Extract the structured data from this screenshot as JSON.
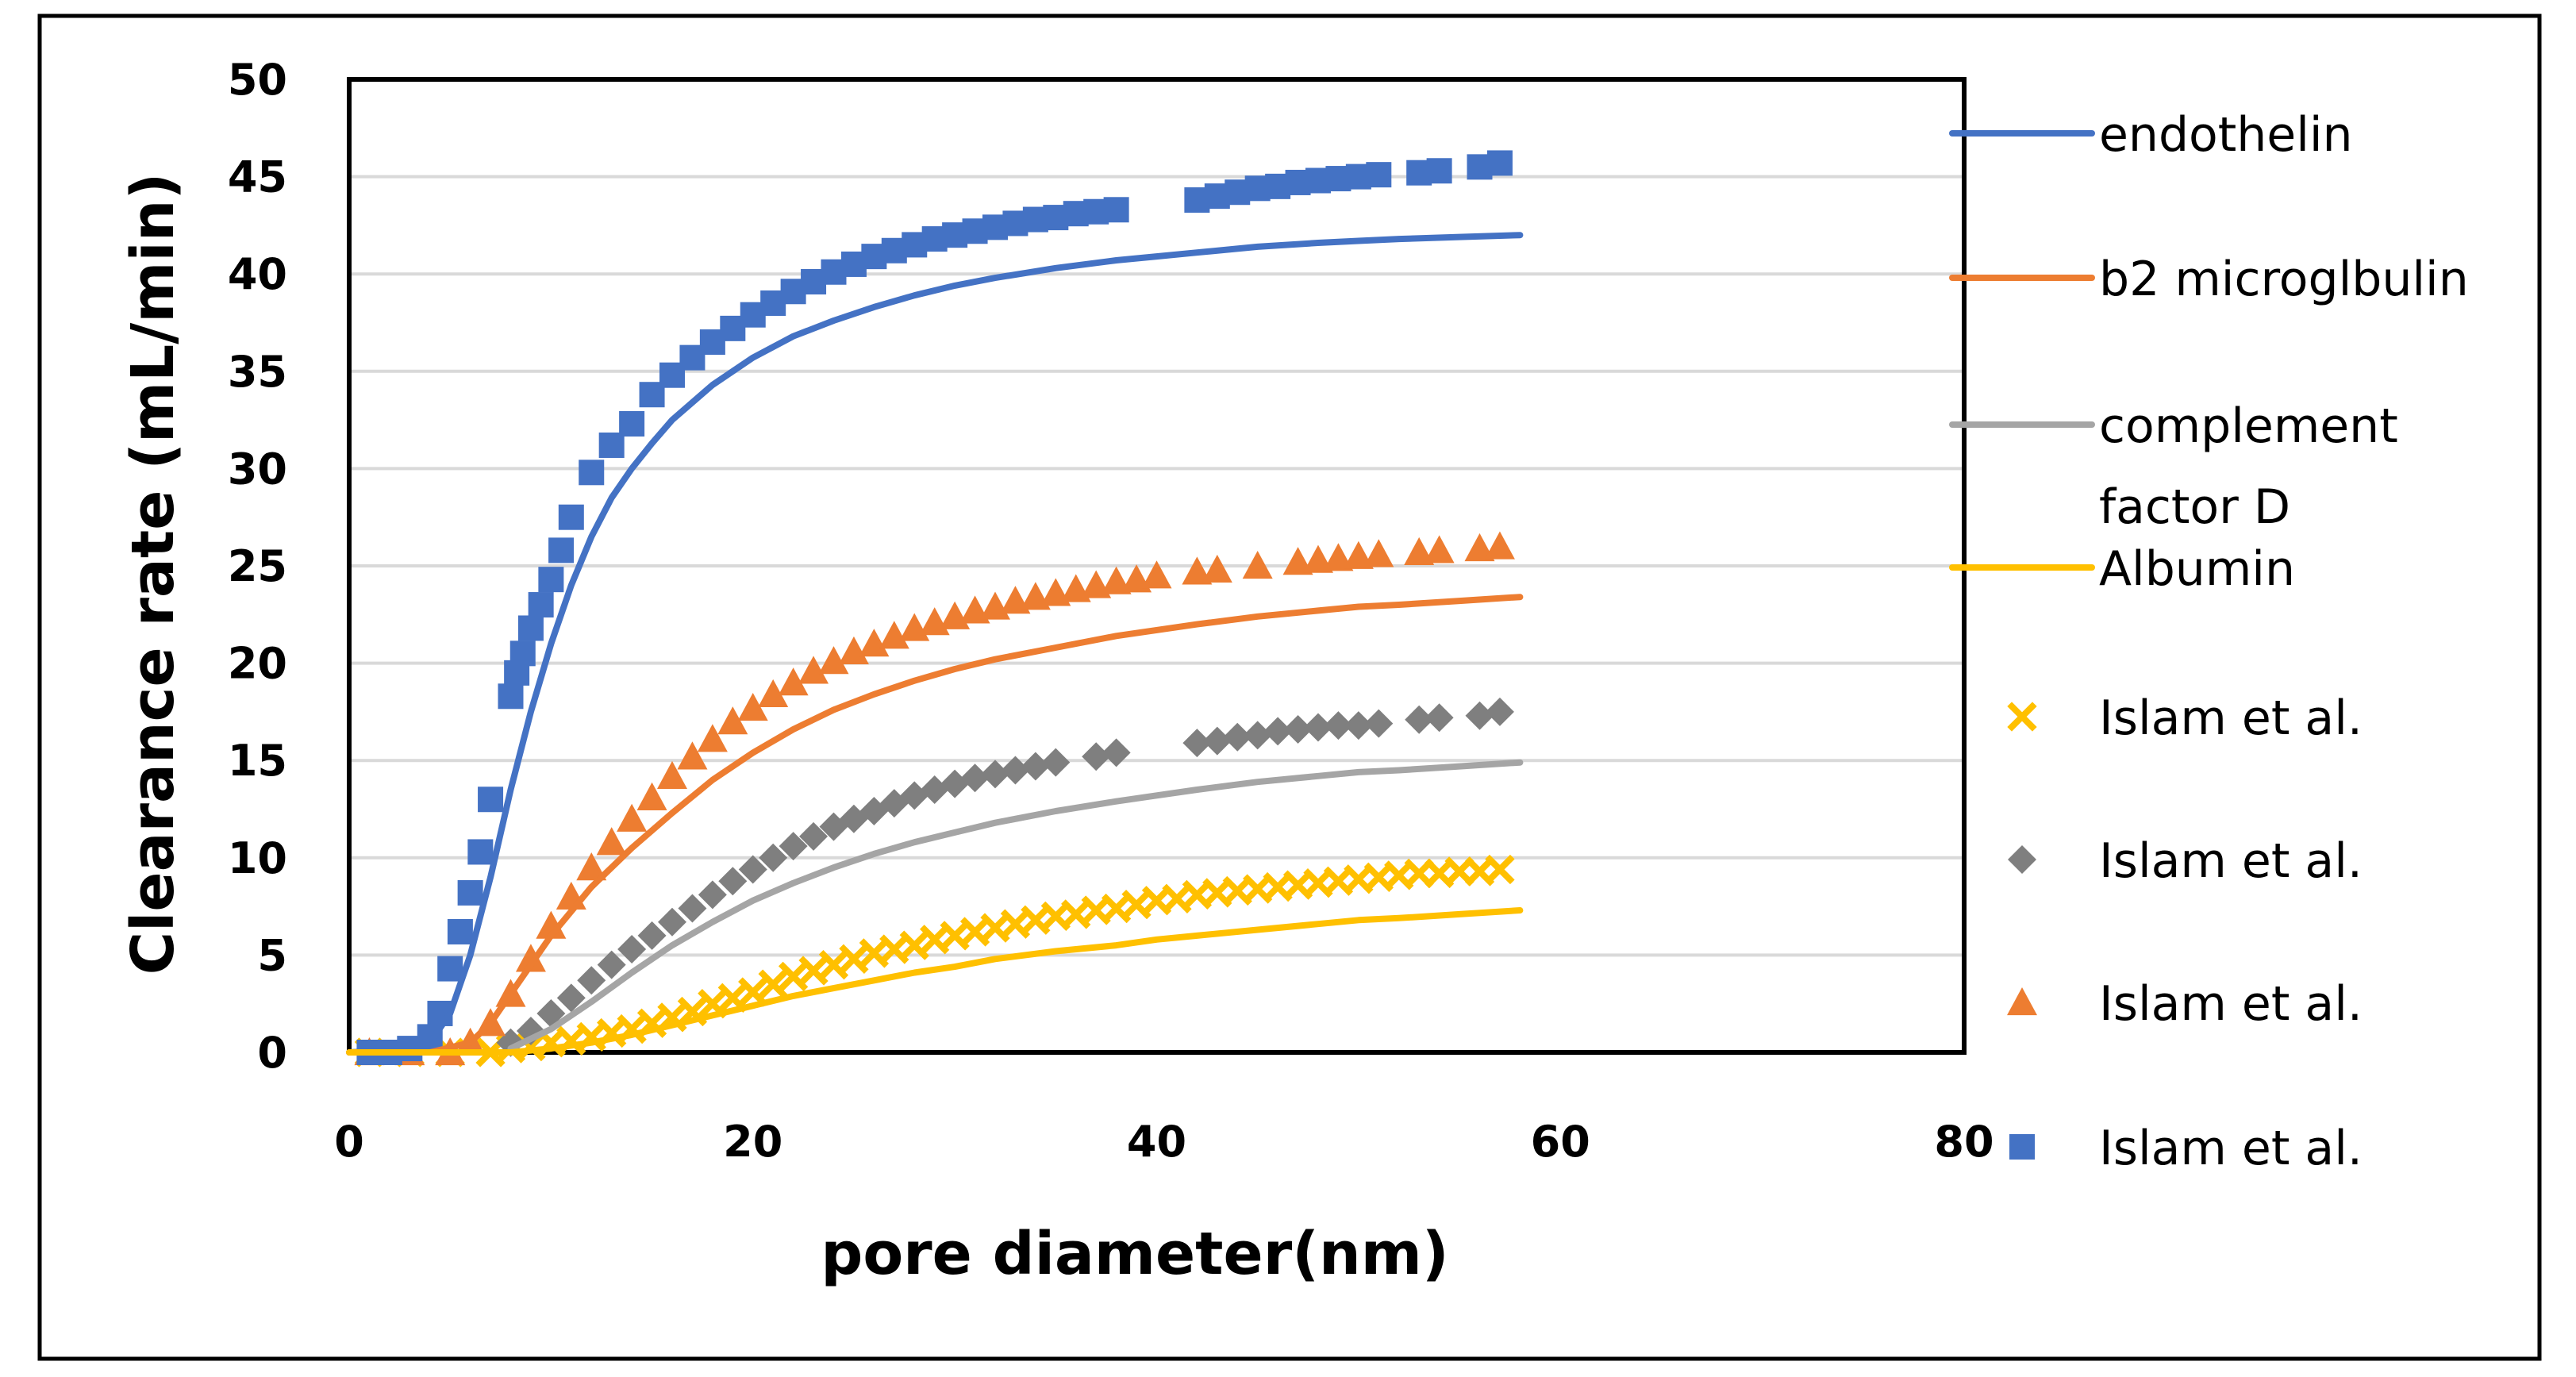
{
  "chart_data": {
    "type": "scatter",
    "title": "",
    "xlabel": "pore diameter(nm)",
    "ylabel": "Clearance rate (mL/min)",
    "xlim": [
      0,
      80
    ],
    "ylim": [
      0,
      50
    ],
    "xticks": [
      "0",
      "20",
      "40",
      "60",
      "80"
    ],
    "yticks": [
      "0",
      "5",
      "10",
      "15",
      "20",
      "25",
      "30",
      "35",
      "40",
      "45",
      "50"
    ],
    "grid": "horizontal",
    "legend_position": "right",
    "series": [
      {
        "name": "endothelin",
        "kind": "line",
        "color": "#4472C4",
        "x": [
          0,
          2,
          4,
          5,
          6,
          7,
          8,
          9,
          10,
          11,
          12,
          13,
          14,
          15,
          16,
          18,
          20,
          22,
          24,
          26,
          28,
          30,
          32,
          35,
          38,
          40,
          42,
          45,
          48,
          50,
          52,
          55,
          58
        ],
        "y": [
          0,
          0.1,
          0.5,
          2,
          5,
          9,
          13.5,
          17.5,
          21,
          24,
          26.5,
          28.5,
          30,
          31.3,
          32.5,
          34.3,
          35.7,
          36.8,
          37.6,
          38.3,
          38.9,
          39.4,
          39.8,
          40.3,
          40.7,
          40.9,
          41.1,
          41.4,
          41.6,
          41.7,
          41.8,
          41.9,
          42
        ]
      },
      {
        "name": "b2 microglbulin",
        "kind": "line",
        "color": "#ED7D31",
        "x": [
          0,
          4,
          6,
          7,
          8,
          9,
          10,
          12,
          14,
          16,
          18,
          20,
          22,
          24,
          26,
          28,
          30,
          32,
          35,
          38,
          40,
          42,
          45,
          48,
          50,
          52,
          55,
          58
        ],
        "y": [
          0,
          0,
          0.5,
          1.5,
          3,
          4.5,
          6,
          8.5,
          10.5,
          12.3,
          14,
          15.4,
          16.6,
          17.6,
          18.4,
          19.1,
          19.7,
          20.2,
          20.8,
          21.4,
          21.7,
          22,
          22.4,
          22.7,
          22.9,
          23,
          23.2,
          23.4
        ]
      },
      {
        "name": "complement factor D",
        "kind": "line",
        "color": "#A5A5A5",
        "x": [
          8,
          10,
          12,
          14,
          16,
          18,
          20,
          22,
          24,
          26,
          28,
          30,
          32,
          35,
          38,
          40,
          42,
          45,
          48,
          50,
          52,
          55,
          58
        ],
        "y": [
          0.2,
          1.2,
          2.6,
          4.1,
          5.5,
          6.7,
          7.8,
          8.7,
          9.5,
          10.2,
          10.8,
          11.3,
          11.8,
          12.4,
          12.9,
          13.2,
          13.5,
          13.9,
          14.2,
          14.4,
          14.5,
          14.7,
          14.9
        ]
      },
      {
        "name": "Albumin",
        "kind": "line",
        "color": "#FFC000",
        "x": [
          0,
          8,
          10,
          12,
          14,
          16,
          18,
          20,
          22,
          24,
          26,
          28,
          30,
          32,
          35,
          38,
          40,
          42,
          45,
          48,
          50,
          52,
          55,
          58
        ],
        "y": [
          0,
          0,
          0.2,
          0.5,
          0.9,
          1.4,
          1.9,
          2.4,
          2.9,
          3.3,
          3.7,
          4.1,
          4.4,
          4.8,
          5.2,
          5.5,
          5.8,
          6,
          6.3,
          6.6,
          6.8,
          6.9,
          7.1,
          7.3
        ]
      },
      {
        "name": "Islam et al.",
        "kind": "marker",
        "marker": "x",
        "color": "#FFC000",
        "x": [
          1,
          3,
          5,
          7,
          8,
          9,
          10,
          11,
          12,
          13,
          14,
          15,
          16,
          17,
          18,
          19,
          20,
          21,
          22,
          23,
          24,
          25,
          26,
          27,
          28,
          29,
          30,
          31,
          32,
          33,
          34,
          35,
          36,
          37,
          38,
          39,
          40,
          41,
          42,
          43,
          44,
          45,
          46,
          47,
          48,
          49,
          50,
          51,
          52,
          53,
          54,
          55,
          56,
          57
        ],
        "y": [
          0,
          0,
          0,
          0,
          0.2,
          0.3,
          0.5,
          0.6,
          0.8,
          1,
          1.2,
          1.5,
          1.8,
          2.1,
          2.5,
          2.8,
          3.1,
          3.5,
          3.9,
          4.2,
          4.5,
          4.8,
          5.1,
          5.3,
          5.5,
          5.8,
          6,
          6.2,
          6.4,
          6.6,
          6.8,
          7,
          7.1,
          7.3,
          7.4,
          7.6,
          7.8,
          7.9,
          8.1,
          8.2,
          8.3,
          8.4,
          8.5,
          8.6,
          8.7,
          8.8,
          8.9,
          9,
          9.1,
          9.2,
          9.2,
          9.3,
          9.3,
          9.4
        ]
      },
      {
        "name": "Islam et al.",
        "kind": "marker",
        "marker": "diamond",
        "color": "#7F7F7F",
        "x": [
          8,
          9,
          10,
          11,
          12,
          13,
          14,
          15,
          16,
          17,
          18,
          19,
          20,
          21,
          22,
          23,
          24,
          25,
          26,
          27,
          28,
          29,
          30,
          31,
          32,
          33,
          34,
          35,
          37,
          38,
          42,
          43,
          44,
          45,
          46,
          47,
          48,
          49,
          50,
          51,
          53,
          54,
          56,
          57
        ],
        "y": [
          0.5,
          1.1,
          2,
          2.8,
          3.7,
          4.5,
          5.3,
          6,
          6.7,
          7.4,
          8.1,
          8.8,
          9.4,
          10,
          10.6,
          11.1,
          11.6,
          12,
          12.4,
          12.8,
          13.2,
          13.5,
          13.8,
          14.1,
          14.3,
          14.5,
          14.7,
          14.9,
          15.2,
          15.4,
          15.9,
          16,
          16.2,
          16.3,
          16.5,
          16.6,
          16.7,
          16.8,
          16.8,
          16.9,
          17.1,
          17.2,
          17.3,
          17.5
        ]
      },
      {
        "name": "Islam et al.",
        "kind": "marker",
        "marker": "triangle",
        "color": "#ED7D31",
        "x": [
          1,
          3,
          5,
          6,
          7,
          8,
          9,
          10,
          11,
          12,
          13,
          14,
          15,
          16,
          17,
          18,
          19,
          20,
          21,
          22,
          23,
          24,
          25,
          26,
          27,
          28,
          29,
          30,
          31,
          32,
          33,
          34,
          35,
          36,
          37,
          38,
          39,
          40,
          42,
          43,
          45,
          47,
          48,
          49,
          50,
          51,
          53,
          54,
          56,
          57
        ],
        "y": [
          0,
          0,
          0,
          0.5,
          1.5,
          3,
          4.8,
          6.5,
          8,
          9.5,
          10.8,
          12,
          13.1,
          14.2,
          15.2,
          16.1,
          17,
          17.7,
          18.4,
          19,
          19.6,
          20.1,
          20.6,
          21,
          21.4,
          21.8,
          22.1,
          22.4,
          22.7,
          22.9,
          23.2,
          23.4,
          23.6,
          23.8,
          24,
          24.2,
          24.3,
          24.5,
          24.7,
          24.8,
          25,
          25.2,
          25.3,
          25.4,
          25.5,
          25.6,
          25.7,
          25.8,
          25.9,
          26
        ]
      },
      {
        "name": "Islam et al.",
        "kind": "marker",
        "marker": "square",
        "color": "#4472C4",
        "x": [
          1,
          2,
          3,
          4,
          4.5,
          5,
          5.5,
          6,
          6.5,
          7,
          8,
          8.3,
          8.6,
          9,
          9.5,
          10,
          10.5,
          11,
          12,
          13,
          14,
          15,
          16,
          17,
          18,
          19,
          20,
          21,
          22,
          23,
          24,
          25,
          26,
          27,
          28,
          29,
          30,
          31,
          32,
          33,
          34,
          35,
          36,
          37,
          38,
          42,
          43,
          44,
          45,
          46,
          47,
          48,
          49,
          50,
          51,
          53,
          54,
          56,
          57
        ],
        "y": [
          0,
          0,
          0.2,
          0.8,
          2,
          4.3,
          6.2,
          8.2,
          10.3,
          13,
          18.3,
          19.5,
          20.5,
          21.8,
          23,
          24.3,
          25.8,
          27.5,
          29.8,
          31.2,
          32.3,
          33.8,
          34.8,
          35.7,
          36.5,
          37.2,
          37.9,
          38.5,
          39.1,
          39.6,
          40.1,
          40.5,
          40.9,
          41.2,
          41.5,
          41.8,
          42,
          42.2,
          42.4,
          42.6,
          42.8,
          42.9,
          43.1,
          43.2,
          43.3,
          43.8,
          44,
          44.2,
          44.4,
          44.5,
          44.7,
          44.8,
          44.9,
          45,
          45.1,
          45.2,
          45.3,
          45.5,
          45.7
        ]
      }
    ]
  }
}
